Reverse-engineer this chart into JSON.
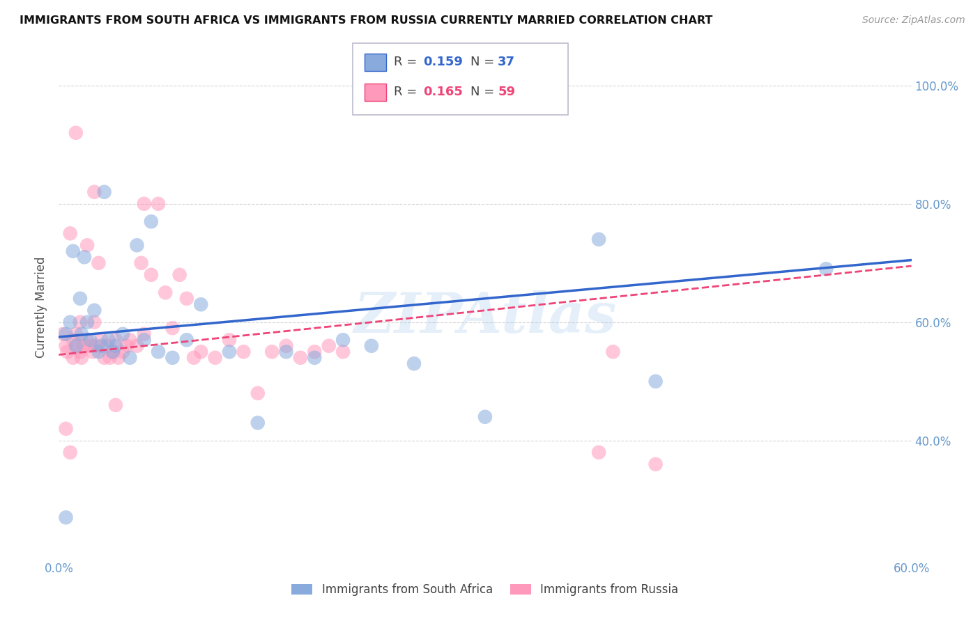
{
  "title": "IMMIGRANTS FROM SOUTH AFRICA VS IMMIGRANTS FROM RUSSIA CURRENTLY MARRIED CORRELATION CHART",
  "source": "Source: ZipAtlas.com",
  "ylabel": "Currently Married",
  "legend_label_blue": "Immigrants from South Africa",
  "legend_label_pink": "Immigrants from Russia",
  "dot_color_blue": "#88AADD",
  "dot_color_pink": "#FF99BB",
  "line_color_blue": "#3366CC",
  "line_color_pink": "#EE4477",
  "watermark": "ZIPAtlas",
  "xmin": 0.0,
  "xmax": 0.6,
  "ymin": 0.2,
  "ymax": 1.05,
  "blue_x": [
    0.005,
    0.008,
    0.01,
    0.012,
    0.015,
    0.016,
    0.018,
    0.02,
    0.022,
    0.025,
    0.028,
    0.03,
    0.032,
    0.035,
    0.038,
    0.04,
    0.045,
    0.05,
    0.055,
    0.06,
    0.065,
    0.07,
    0.08,
    0.09,
    0.1,
    0.12,
    0.14,
    0.16,
    0.18,
    0.2,
    0.22,
    0.25,
    0.3,
    0.38,
    0.42,
    0.54,
    0.005
  ],
  "blue_y": [
    0.58,
    0.6,
    0.72,
    0.56,
    0.64,
    0.58,
    0.71,
    0.6,
    0.57,
    0.62,
    0.55,
    0.56,
    0.82,
    0.57,
    0.55,
    0.56,
    0.58,
    0.54,
    0.73,
    0.57,
    0.77,
    0.55,
    0.54,
    0.57,
    0.63,
    0.55,
    0.43,
    0.55,
    0.54,
    0.57,
    0.56,
    0.53,
    0.44,
    0.74,
    0.5,
    0.69,
    0.27
  ],
  "pink_x": [
    0.003,
    0.005,
    0.006,
    0.008,
    0.01,
    0.01,
    0.012,
    0.013,
    0.015,
    0.015,
    0.016,
    0.018,
    0.02,
    0.02,
    0.022,
    0.024,
    0.025,
    0.026,
    0.028,
    0.03,
    0.032,
    0.034,
    0.036,
    0.038,
    0.04,
    0.042,
    0.045,
    0.048,
    0.05,
    0.055,
    0.058,
    0.06,
    0.065,
    0.07,
    0.075,
    0.08,
    0.085,
    0.09,
    0.095,
    0.1,
    0.11,
    0.12,
    0.13,
    0.14,
    0.15,
    0.16,
    0.17,
    0.18,
    0.19,
    0.2,
    0.005,
    0.008,
    0.012,
    0.025,
    0.04,
    0.06,
    0.38,
    0.39,
    0.42
  ],
  "pink_y": [
    0.58,
    0.56,
    0.55,
    0.75,
    0.57,
    0.54,
    0.58,
    0.56,
    0.55,
    0.6,
    0.54,
    0.56,
    0.57,
    0.73,
    0.56,
    0.55,
    0.6,
    0.56,
    0.7,
    0.57,
    0.54,
    0.56,
    0.54,
    0.55,
    0.57,
    0.54,
    0.55,
    0.56,
    0.57,
    0.56,
    0.7,
    0.58,
    0.68,
    0.8,
    0.65,
    0.59,
    0.68,
    0.64,
    0.54,
    0.55,
    0.54,
    0.57,
    0.55,
    0.48,
    0.55,
    0.56,
    0.54,
    0.55,
    0.56,
    0.55,
    0.42,
    0.38,
    0.92,
    0.82,
    0.46,
    0.8,
    0.38,
    0.55,
    0.36
  ]
}
